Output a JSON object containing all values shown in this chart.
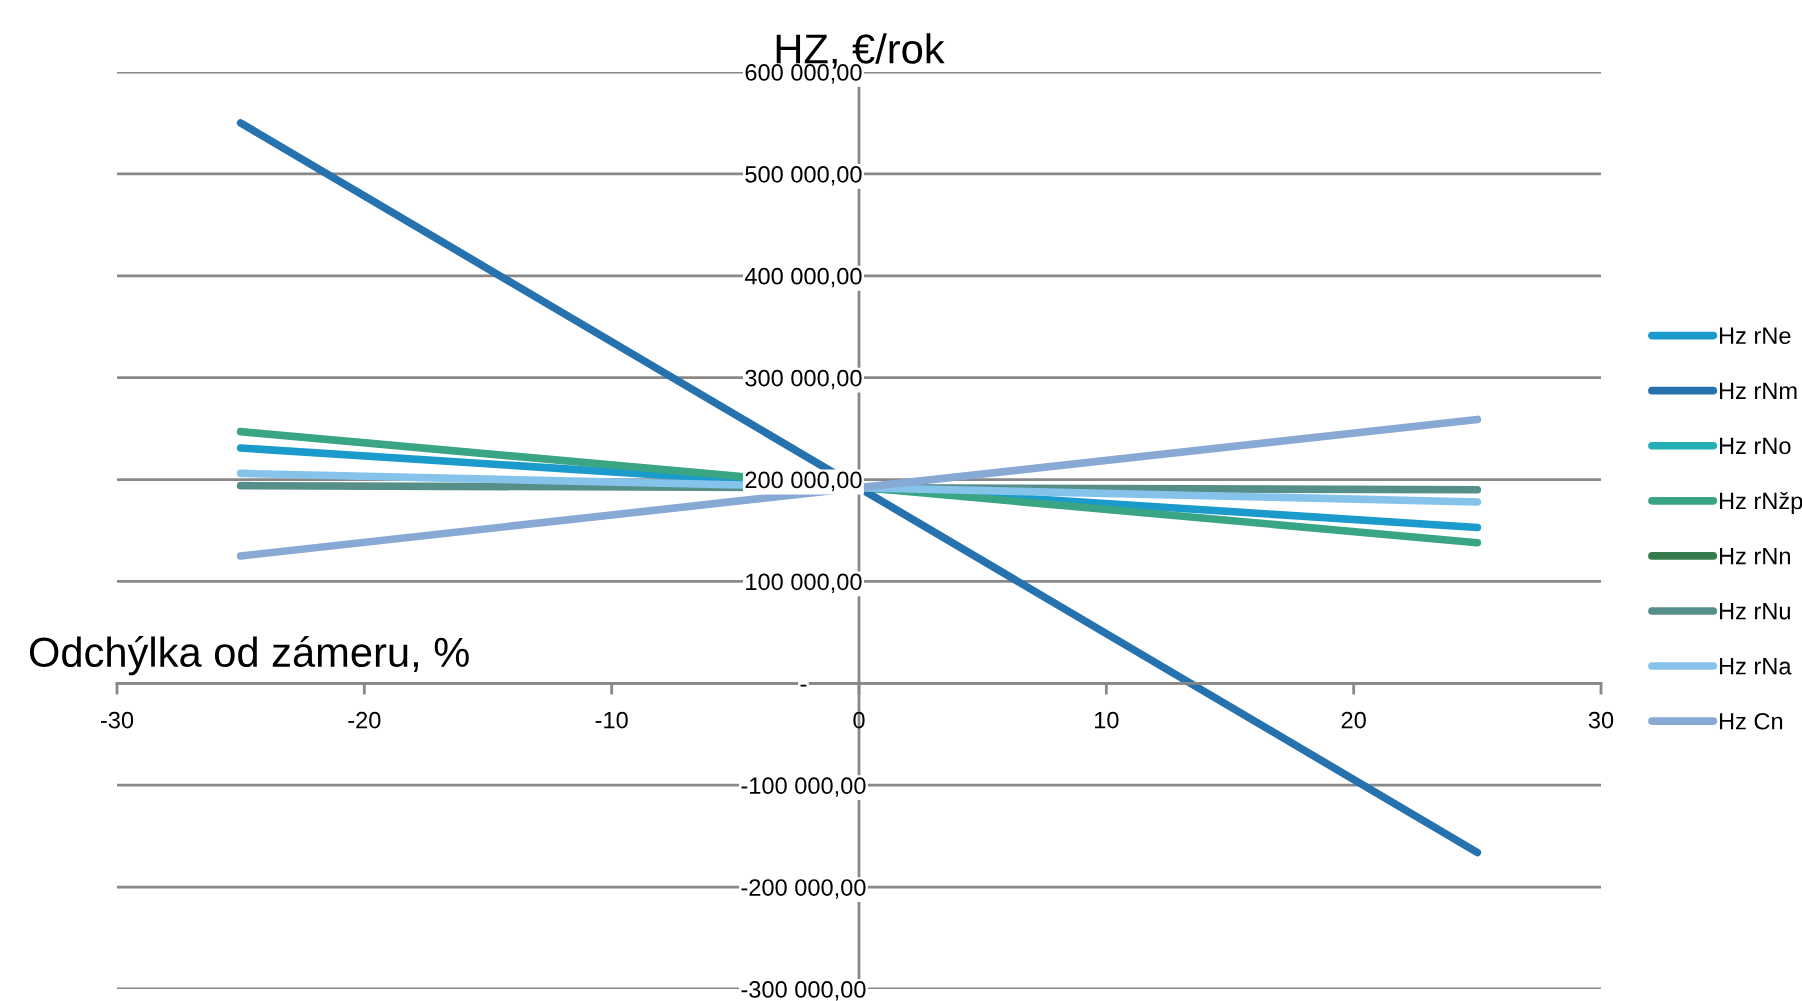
{
  "chart_data": {
    "type": "line",
    "ylabel": "HZ, €/rok",
    "xlabel": "Odchýlka od zámeru, %",
    "x": [
      -25,
      25
    ],
    "series": [
      {
        "name": "Hz rNe",
        "color": "#1a9bcc",
        "values": [
          231000,
          153000
        ]
      },
      {
        "name": "Hz rNm",
        "color": "#2672ae",
        "values": [
          550000,
          -166000
        ]
      },
      {
        "name": "Hz rNo",
        "color": "#22b0b5",
        "values": [
          null,
          null
        ]
      },
      {
        "name": "Hz rNžp",
        "color": "#3aa584",
        "values": [
          247000,
          138000
        ]
      },
      {
        "name": "Hz rNn",
        "color": "#387c4e",
        "values": [
          null,
          null
        ]
      },
      {
        "name": "Hz rNu",
        "color": "#568f89",
        "values": [
          194000,
          190000
        ]
      },
      {
        "name": "Hz rNa",
        "color": "#86c3ea",
        "values": [
          206000,
          178000
        ]
      },
      {
        "name": "Hz Cn",
        "color": "#87a9d4",
        "values": [
          125000,
          259000
        ]
      }
    ],
    "xlim": [
      -30,
      30
    ],
    "xticks": [
      -30,
      -20,
      -10,
      0,
      10,
      20,
      30
    ],
    "ylim": [
      -300000,
      600000
    ],
    "yticks": [
      {
        "value": -300000,
        "label": "-300 000,00"
      },
      {
        "value": -200000,
        "label": "-200 000,00"
      },
      {
        "value": -100000,
        "label": "-100 000,00"
      },
      {
        "value": 0,
        "label": "-"
      },
      {
        "value": 100000,
        "label": "100 000,00"
      },
      {
        "value": 200000,
        "label": "200 000,00"
      },
      {
        "value": 300000,
        "label": "300 000,00"
      },
      {
        "value": 400000,
        "label": "400 000,00"
      },
      {
        "value": 500000,
        "label": "500 000,00"
      },
      {
        "value": 600000,
        "label": "600 000,00"
      }
    ],
    "grid": "y",
    "legend": "right",
    "marker": "none",
    "line_style": "solid"
  }
}
